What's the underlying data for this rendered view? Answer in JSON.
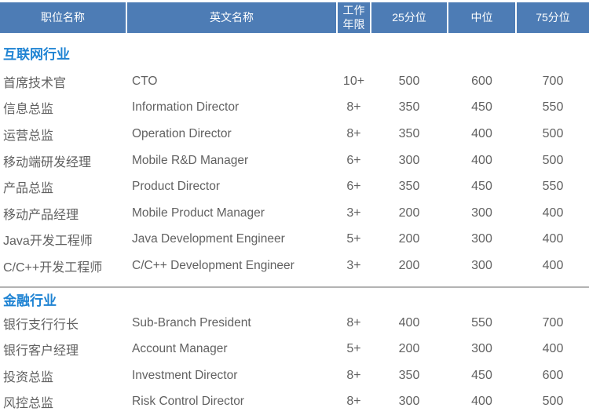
{
  "table": {
    "columns": [
      {
        "key": "name",
        "label": "职位名称"
      },
      {
        "key": "en",
        "label": "英文名称"
      },
      {
        "key": "years",
        "label": "工作年限"
      },
      {
        "key": "p25",
        "label": "25分位"
      },
      {
        "key": "p50",
        "label": "中位"
      },
      {
        "key": "p75",
        "label": "75分位"
      }
    ],
    "sections": [
      {
        "title": "互联网行业",
        "divider_above": false,
        "rows": [
          {
            "name": "首席技术官",
            "en": "CTO",
            "years": "10+",
            "p25": "500",
            "p50": "600",
            "p75": "700"
          },
          {
            "name": "信息总监",
            "en": "Information Director",
            "years": "8+",
            "p25": "350",
            "p50": "450",
            "p75": "550"
          },
          {
            "name": "运营总监",
            "en": "Operation Director",
            "years": "8+",
            "p25": "350",
            "p50": "400",
            "p75": "500"
          },
          {
            "name": "移动端研发经理",
            "en": "Mobile R&D Manager",
            "years": "6+",
            "p25": "300",
            "p50": "400",
            "p75": "500"
          },
          {
            "name": "产品总监",
            "en": "Product Director",
            "years": "6+",
            "p25": "350",
            "p50": "450",
            "p75": "550"
          },
          {
            "name": "移动产品经理",
            "en": "Mobile Product Manager",
            "years": "3+",
            "p25": "200",
            "p50": "300",
            "p75": "400"
          },
          {
            "name": "Java开发工程师",
            "en": "Java Development Engineer",
            "years": "5+",
            "p25": "200",
            "p50": "300",
            "p75": "400"
          },
          {
            "name": "C/C++开发工程师",
            "en": "C/C++ Development Engineer",
            "years": "3+",
            "p25": "200",
            "p50": "300",
            "p75": "400"
          }
        ]
      },
      {
        "title": "金融行业",
        "divider_above": true,
        "rows": [
          {
            "name": "银行支行行长",
            "en": "Sub-Branch President",
            "years": "8+",
            "p25": "400",
            "p50": "550",
            "p75": "700"
          },
          {
            "name": "银行客户经理",
            "en": "Account Manager",
            "years": "5+",
            "p25": "200",
            "p50": "300",
            "p75": "400"
          },
          {
            "name": "投资总监",
            "en": "Investment Director",
            "years": "8+",
            "p25": "350",
            "p50": "450",
            "p75": "600"
          },
          {
            "name": "风控总监",
            "en": "Risk Control Director",
            "years": "8+",
            "p25": "300",
            "p50": "400",
            "p75": "500"
          }
        ]
      }
    ]
  },
  "colors": {
    "header_bg": "#4d7cb5",
    "header_text": "#ffffff",
    "section_title": "#1e83d3",
    "row_text": "#616161",
    "divider": "#b3b3b3"
  }
}
